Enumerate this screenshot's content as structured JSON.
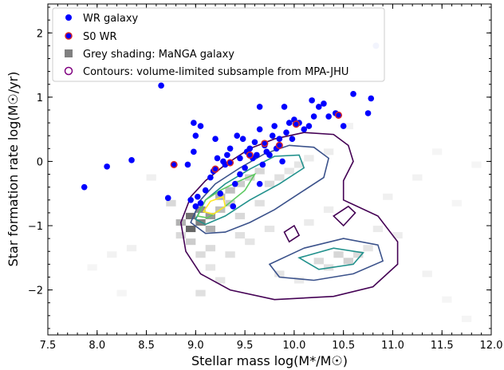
{
  "chart_data": {
    "type": "scatter",
    "xlabel": "Stellar mass log(M*/M☉)",
    "ylabel": "Star formation rate log(M☉/yr)",
    "xlim": [
      7.5,
      12.0
    ],
    "ylim": [
      -2.7,
      2.45
    ],
    "xticks": [
      "7.5",
      "8.0",
      "8.5",
      "9.0",
      "9.5",
      "10.0",
      "10.5",
      "11.0",
      "11.5",
      "12.0"
    ],
    "xtick_values": [
      7.5,
      8.0,
      8.5,
      9.0,
      9.5,
      10.0,
      10.5,
      11.0,
      11.5,
      12.0
    ],
    "yticks": [
      "−2",
      "−1",
      "0",
      "1",
      "2"
    ],
    "ytick_values": [
      -2,
      -1,
      0,
      1,
      2
    ],
    "grid": false,
    "legend_position": "top-left",
    "legend": [
      {
        "label": "WR galaxy",
        "marker": "blue-dot"
      },
      {
        "label": "S0 WR",
        "marker": "blue-dot-red-edge"
      },
      {
        "label": "Grey shading: MaNGA galaxy",
        "marker": "grey-square"
      },
      {
        "label": "Contours: volume-limited subsample from MPA-JHU",
        "marker": "purple-ring"
      }
    ],
    "colors": {
      "wr": "#0000ff",
      "s0_edge": "#d62728",
      "faint_point": "#aab4f0",
      "contour_outer": "#440154",
      "contour_mid": "#3b528b",
      "contour_teal": "#21918c",
      "contour_green": "#5ec962",
      "contour_yellow": "#fde725"
    },
    "wr_points": [
      [
        7.87,
        -0.4
      ],
      [
        8.1,
        -0.08
      ],
      [
        8.35,
        0.02
      ],
      [
        8.65,
        1.18
      ],
      [
        8.72,
        -0.57
      ],
      [
        8.78,
        -0.05
      ],
      [
        8.92,
        -0.05
      ],
      [
        8.95,
        -0.6
      ],
      [
        8.98,
        0.6
      ],
      [
        8.98,
        0.15
      ],
      [
        9.0,
        0.4
      ],
      [
        9.0,
        -0.7
      ],
      [
        9.02,
        -0.55
      ],
      [
        9.05,
        0.55
      ],
      [
        9.05,
        -0.65
      ],
      [
        9.1,
        -0.45
      ],
      [
        9.15,
        -0.25
      ],
      [
        9.18,
        -0.15
      ],
      [
        9.2,
        0.35
      ],
      [
        9.22,
        0.05
      ],
      [
        9.25,
        -0.5
      ],
      [
        9.28,
        0.0
      ],
      [
        9.3,
        -0.05
      ],
      [
        9.32,
        0.1
      ],
      [
        9.35,
        0.2
      ],
      [
        9.38,
        -0.7
      ],
      [
        9.4,
        -0.35
      ],
      [
        9.42,
        0.4
      ],
      [
        9.45,
        -0.2
      ],
      [
        9.45,
        0.05
      ],
      [
        9.48,
        0.35
      ],
      [
        9.5,
        -0.1
      ],
      [
        9.52,
        0.15
      ],
      [
        9.55,
        0.2
      ],
      [
        9.58,
        0.05
      ],
      [
        9.6,
        0.3
      ],
      [
        9.62,
        0.1
      ],
      [
        9.65,
        -0.35
      ],
      [
        9.65,
        0.5
      ],
      [
        9.65,
        0.85
      ],
      [
        9.68,
        -0.05
      ],
      [
        9.7,
        0.25
      ],
      [
        9.72,
        0.15
      ],
      [
        9.75,
        0.1
      ],
      [
        9.78,
        0.4
      ],
      [
        9.8,
        0.55
      ],
      [
        9.82,
        0.2
      ],
      [
        9.85,
        0.35
      ],
      [
        9.88,
        0.0
      ],
      [
        9.9,
        0.85
      ],
      [
        9.92,
        0.45
      ],
      [
        9.95,
        0.6
      ],
      [
        9.98,
        0.35
      ],
      [
        10.0,
        0.65
      ],
      [
        10.05,
        0.6
      ],
      [
        10.1,
        0.5
      ],
      [
        10.15,
        0.55
      ],
      [
        10.18,
        0.95
      ],
      [
        10.2,
        0.7
      ],
      [
        10.25,
        0.85
      ],
      [
        10.3,
        0.9
      ],
      [
        10.35,
        0.7
      ],
      [
        10.42,
        0.75
      ],
      [
        10.5,
        0.55
      ],
      [
        10.6,
        1.05
      ],
      [
        10.75,
        0.75
      ],
      [
        10.78,
        0.98
      ]
    ],
    "s0_points": [
      [
        8.78,
        -0.05
      ],
      [
        9.2,
        -0.12
      ],
      [
        9.35,
        -0.02
      ],
      [
        9.55,
        0.1
      ],
      [
        9.7,
        0.28
      ],
      [
        9.85,
        0.25
      ],
      [
        10.02,
        0.58
      ],
      [
        10.45,
        0.72
      ]
    ],
    "faint_points": [
      [
        10.83,
        1.8
      ]
    ],
    "contour_paths": [
      {
        "color": "contour_outer",
        "points": [
          [
            8.85,
            -0.95
          ],
          [
            8.95,
            -0.55
          ],
          [
            9.1,
            -0.3
          ],
          [
            9.3,
            -0.05
          ],
          [
            9.55,
            0.2
          ],
          [
            9.8,
            0.35
          ],
          [
            10.1,
            0.45
          ],
          [
            10.4,
            0.42
          ],
          [
            10.55,
            0.25
          ],
          [
            10.6,
            0.0
          ],
          [
            10.5,
            -0.3
          ],
          [
            10.5,
            -0.6
          ],
          [
            10.85,
            -0.85
          ],
          [
            11.05,
            -1.25
          ],
          [
            11.05,
            -1.6
          ],
          [
            10.8,
            -1.95
          ],
          [
            10.4,
            -2.1
          ],
          [
            9.8,
            -2.15
          ],
          [
            9.35,
            -2.0
          ],
          [
            9.05,
            -1.75
          ],
          [
            8.9,
            -1.4
          ],
          [
            8.85,
            -0.95
          ]
        ]
      },
      {
        "color": "contour_outer",
        "points": [
          [
            10.4,
            -0.85
          ],
          [
            10.55,
            -0.7
          ],
          [
            10.62,
            -0.8
          ],
          [
            10.5,
            -1.0
          ],
          [
            10.4,
            -0.85
          ]
        ]
      },
      {
        "color": "contour_outer",
        "points": [
          [
            9.9,
            -1.1
          ],
          [
            10.0,
            -1.0
          ],
          [
            10.05,
            -1.15
          ],
          [
            9.95,
            -1.25
          ],
          [
            9.9,
            -1.1
          ]
        ]
      },
      {
        "color": "contour_mid",
        "points": [
          [
            8.95,
            -0.95
          ],
          [
            9.05,
            -0.6
          ],
          [
            9.2,
            -0.35
          ],
          [
            9.45,
            -0.1
          ],
          [
            9.7,
            0.12
          ],
          [
            9.95,
            0.25
          ],
          [
            10.2,
            0.22
          ],
          [
            10.35,
            0.05
          ],
          [
            10.3,
            -0.25
          ],
          [
            10.05,
            -0.5
          ],
          [
            9.8,
            -0.75
          ],
          [
            9.55,
            -0.95
          ],
          [
            9.3,
            -1.1
          ],
          [
            9.1,
            -1.12
          ],
          [
            8.95,
            -0.95
          ]
        ]
      },
      {
        "color": "contour_mid",
        "points": [
          [
            9.75,
            -1.6
          ],
          [
            10.1,
            -1.35
          ],
          [
            10.5,
            -1.2
          ],
          [
            10.85,
            -1.3
          ],
          [
            10.9,
            -1.55
          ],
          [
            10.6,
            -1.75
          ],
          [
            10.2,
            -1.85
          ],
          [
            9.85,
            -1.8
          ],
          [
            9.75,
            -1.6
          ]
        ]
      },
      {
        "color": "contour_teal",
        "points": [
          [
            9.0,
            -0.9
          ],
          [
            9.1,
            -0.6
          ],
          [
            9.3,
            -0.35
          ],
          [
            9.55,
            -0.12
          ],
          [
            9.8,
            0.08
          ],
          [
            10.05,
            0.1
          ],
          [
            10.1,
            -0.1
          ],
          [
            9.85,
            -0.35
          ],
          [
            9.55,
            -0.6
          ],
          [
            9.3,
            -0.85
          ],
          [
            9.1,
            -0.98
          ],
          [
            9.0,
            -0.9
          ]
        ]
      },
      {
        "color": "contour_teal",
        "points": [
          [
            10.05,
            -1.5
          ],
          [
            10.4,
            -1.35
          ],
          [
            10.7,
            -1.42
          ],
          [
            10.6,
            -1.6
          ],
          [
            10.25,
            -1.68
          ],
          [
            10.05,
            -1.5
          ]
        ]
      },
      {
        "color": "contour_green",
        "points": [
          [
            9.02,
            -0.85
          ],
          [
            9.1,
            -0.6
          ],
          [
            9.25,
            -0.45
          ],
          [
            9.45,
            -0.3
          ],
          [
            9.6,
            -0.2
          ],
          [
            9.5,
            -0.45
          ],
          [
            9.3,
            -0.7
          ],
          [
            9.12,
            -0.88
          ],
          [
            9.02,
            -0.85
          ]
        ]
      },
      {
        "color": "contour_yellow",
        "points": [
          [
            9.08,
            -0.78
          ],
          [
            9.15,
            -0.62
          ],
          [
            9.28,
            -0.55
          ],
          [
            9.3,
            -0.7
          ],
          [
            9.18,
            -0.82
          ],
          [
            9.08,
            -0.78
          ]
        ]
      }
    ],
    "grey_cells": [
      [
        8.95,
        -1.05,
        0.6
      ],
      [
        8.95,
        -0.85,
        0.55
      ],
      [
        9.05,
        -0.95,
        0.5
      ],
      [
        9.15,
        -0.85,
        0.4
      ],
      [
        9.05,
        -0.75,
        0.45
      ],
      [
        9.25,
        -0.55,
        0.3
      ],
      [
        9.35,
        -0.45,
        0.25
      ],
      [
        8.85,
        -0.95,
        0.3
      ],
      [
        9.15,
        -1.05,
        0.3
      ],
      [
        9.45,
        -0.35,
        0.2
      ],
      [
        9.55,
        -0.25,
        0.18
      ],
      [
        9.65,
        -0.15,
        0.16
      ],
      [
        9.25,
        -0.75,
        0.25
      ],
      [
        9.35,
        -0.65,
        0.2
      ],
      [
        8.75,
        -0.65,
        0.15
      ],
      [
        9.75,
        -0.35,
        0.14
      ],
      [
        9.85,
        -0.25,
        0.12
      ],
      [
        9.95,
        -0.15,
        0.1
      ],
      [
        10.05,
        -0.05,
        0.1
      ],
      [
        9.45,
        -0.85,
        0.15
      ],
      [
        9.65,
        -0.65,
        0.12
      ],
      [
        9.15,
        -1.35,
        0.14
      ],
      [
        9.35,
        -1.45,
        0.12
      ],
      [
        9.55,
        -1.25,
        0.1
      ],
      [
        10.25,
        -1.55,
        0.14
      ],
      [
        10.45,
        -1.45,
        0.16
      ],
      [
        10.55,
        -1.55,
        0.18
      ],
      [
        10.65,
        -1.45,
        0.14
      ],
      [
        10.35,
        -1.65,
        0.12
      ],
      [
        10.75,
        -1.35,
        0.1
      ],
      [
        9.85,
        -1.75,
        0.1
      ],
      [
        10.05,
        -1.85,
        0.08
      ],
      [
        9.25,
        -1.85,
        0.1
      ],
      [
        9.05,
        -2.05,
        0.12
      ],
      [
        9.15,
        -1.65,
        0.1
      ],
      [
        8.95,
        -1.25,
        0.2
      ],
      [
        8.85,
        -1.15,
        0.15
      ],
      [
        10.15,
        0.05,
        0.08
      ],
      [
        10.35,
        0.15,
        0.07
      ],
      [
        10.85,
        -1.05,
        0.08
      ],
      [
        11.05,
        -1.15,
        0.07
      ],
      [
        10.95,
        -0.55,
        0.06
      ],
      [
        11.25,
        -0.25,
        0.05
      ],
      [
        11.45,
        0.15,
        0.04
      ],
      [
        11.65,
        -0.65,
        0.04
      ],
      [
        8.35,
        -1.35,
        0.06
      ],
      [
        8.15,
        -1.45,
        0.05
      ],
      [
        8.55,
        -0.25,
        0.06
      ],
      [
        7.95,
        -1.65,
        0.04
      ],
      [
        8.25,
        -2.05,
        0.04
      ],
      [
        11.35,
        -1.75,
        0.05
      ],
      [
        11.55,
        -2.15,
        0.04
      ],
      [
        11.75,
        -2.45,
        0.04
      ],
      [
        11.85,
        -0.05,
        0.04
      ],
      [
        10.55,
        0.55,
        0.05
      ],
      [
        9.75,
        -1.05,
        0.1
      ],
      [
        10.15,
        -0.95,
        0.08
      ],
      [
        10.35,
        -0.75,
        0.07
      ],
      [
        9.45,
        -1.15,
        0.12
      ],
      [
        9.05,
        -1.45,
        0.14
      ]
    ]
  }
}
